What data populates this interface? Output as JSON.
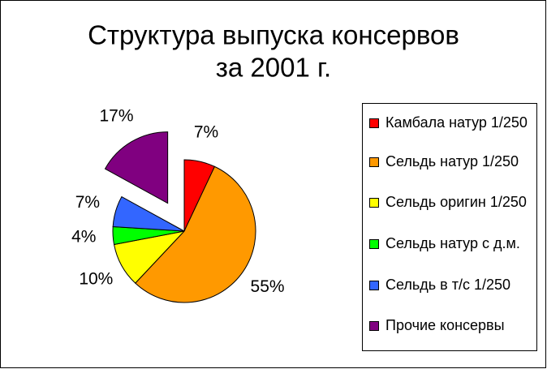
{
  "chart_data": {
    "type": "pie",
    "title": [
      "Структура выпуска консервов",
      "за 2001 г."
    ],
    "categories": [
      "Камбала натур 1/250",
      "Сельдь натур 1/250",
      "Сельдь оригин 1/250",
      "Сельдь натур с д.м.",
      "Сельдь в т/с 1/250",
      "Прочие консервы"
    ],
    "values": [
      7,
      55,
      10,
      4,
      7,
      17
    ],
    "value_labels": [
      "7%",
      "55%",
      "10%",
      "4%",
      "7%",
      "17%"
    ],
    "colors": [
      "#ff0000",
      "#ff9900",
      "#ffff00",
      "#00ff00",
      "#3366ff",
      "#800080"
    ],
    "exploded": [
      5
    ],
    "legend": "right"
  }
}
